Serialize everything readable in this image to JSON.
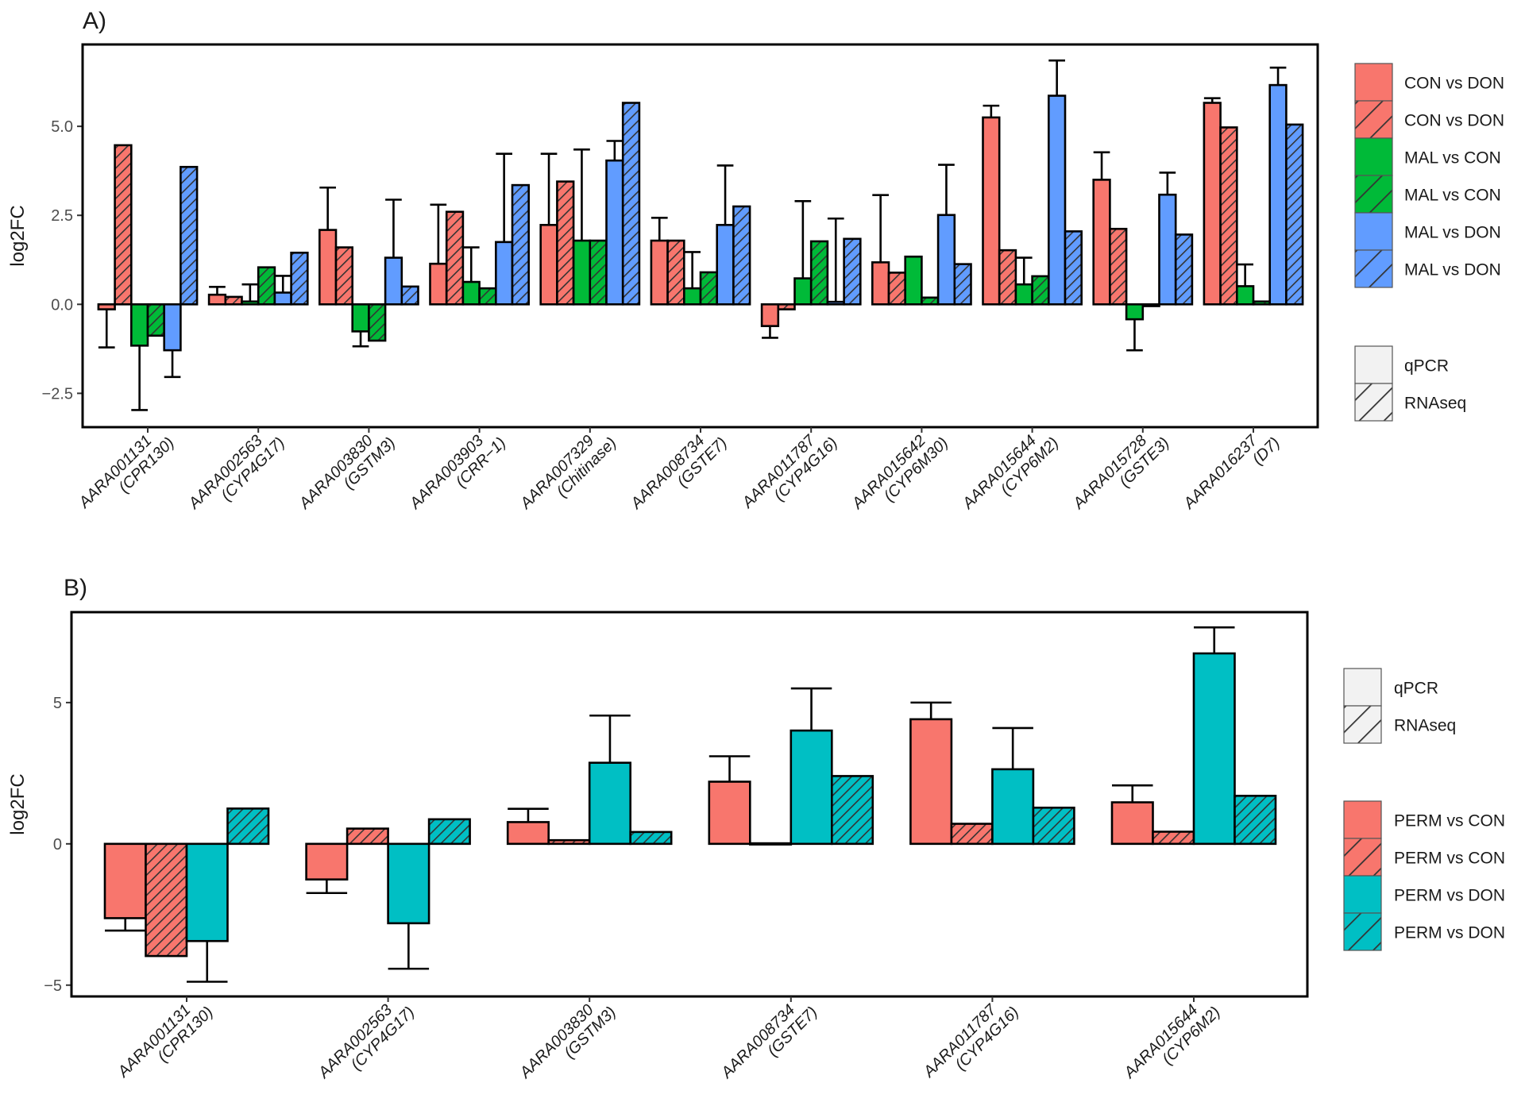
{
  "chart_data": [
    {
      "type": "bar",
      "panel_label": "A)",
      "ylabel": "log2FC",
      "xlabel": "",
      "ylim": [
        -3.45,
        7.3
      ],
      "yticks": [
        -2.5,
        0.0,
        2.5,
        5.0
      ],
      "ytick_labels": [
        "-2.5",
        "0.0",
        "2.5",
        "5.0"
      ],
      "grid": false,
      "legend_position": "right",
      "categories": [
        [
          "AARA001131",
          "(CPR130)"
        ],
        [
          "AARA002563",
          "(CYP4G17)"
        ],
        [
          "AARA003830",
          "(GSTM3)"
        ],
        [
          "AARA003903",
          "(CRR-1)"
        ],
        [
          "AARA007329",
          "(Chitinase)"
        ],
        [
          "AARA008734",
          "(GSTE7)"
        ],
        [
          "AARA011787",
          "(CYP4G16)"
        ],
        [
          "AARA015642",
          "(CYP6M30)"
        ],
        [
          "AARA015644",
          "(CYP6M2)"
        ],
        [
          "AARA015728",
          "(GSTE3)"
        ],
        [
          "AARA016237",
          "(D7)"
        ]
      ],
      "series": [
        {
          "name": "CON vs DON",
          "method": "qPCR",
          "color": "#F8766D",
          "hatched": false,
          "values": [
            -0.14,
            0.27,
            2.09,
            1.14,
            2.23,
            1.79,
            -0.61,
            1.18,
            5.25,
            3.5,
            5.66
          ],
          "error_ends": [
            -1.21,
            0.49,
            3.28,
            2.8,
            4.23,
            2.43,
            -0.94,
            3.07,
            5.58,
            4.27,
            5.79
          ]
        },
        {
          "name": "CON vs DON",
          "method": "RNAseq",
          "color": "#F8766D",
          "hatched": true,
          "values": [
            4.47,
            0.21,
            1.6,
            2.6,
            3.45,
            1.79,
            -0.14,
            0.89,
            1.52,
            2.12,
            4.97
          ],
          "error_ends": null
        },
        {
          "name": "MAL vs CON",
          "method": "qPCR",
          "color": "#00BA38",
          "hatched": false,
          "values": [
            -1.16,
            0.08,
            -0.76,
            0.63,
            1.79,
            0.45,
            0.73,
            1.34,
            0.56,
            -0.42,
            0.51
          ],
          "error_ends": [
            -2.97,
            0.56,
            -1.18,
            1.6,
            4.35,
            1.47,
            2.9,
            null,
            1.31,
            -1.29,
            1.12
          ]
        },
        {
          "name": "MAL vs CON",
          "method": "RNAseq",
          "color": "#00BA38",
          "hatched": true,
          "values": [
            -0.88,
            1.04,
            -1.02,
            0.45,
            1.79,
            0.9,
            1.77,
            0.19,
            0.79,
            -0.05,
            0.08
          ],
          "error_ends": null
        },
        {
          "name": "MAL vs DON",
          "method": "qPCR",
          "color": "#619CFF",
          "hatched": false,
          "values": [
            -1.29,
            0.33,
            1.31,
            1.75,
            4.04,
            2.23,
            0.07,
            2.51,
            5.86,
            3.08,
            6.16
          ],
          "error_ends": [
            -2.04,
            0.8,
            2.94,
            4.23,
            4.59,
            3.9,
            2.41,
            3.92,
            6.85,
            3.7,
            6.65
          ]
        },
        {
          "name": "MAL vs DON",
          "method": "RNAseq",
          "color": "#619CFF",
          "hatched": true,
          "values": [
            3.86,
            1.45,
            0.5,
            3.35,
            5.66,
            2.75,
            1.84,
            1.13,
            2.05,
            1.96,
            5.05
          ],
          "error_ends": null
        }
      ],
      "legend": {
        "comparisons": [
          {
            "label": "CON vs DON",
            "color": "#F8766D",
            "hatched": false
          },
          {
            "label": "CON vs DON",
            "color": "#F8766D",
            "hatched": true
          },
          {
            "label": "MAL vs CON",
            "color": "#00BA38",
            "hatched": false
          },
          {
            "label": "MAL vs CON",
            "color": "#00BA38",
            "hatched": true
          },
          {
            "label": "MAL vs DON",
            "color": "#619CFF",
            "hatched": false
          },
          {
            "label": "MAL vs DON",
            "color": "#619CFF",
            "hatched": true
          }
        ],
        "methods": [
          {
            "label": "qPCR",
            "hatched": false
          },
          {
            "label": "RNAseq",
            "hatched": true
          }
        ]
      }
    },
    {
      "type": "bar",
      "panel_label": "B)",
      "ylabel": "log2FC",
      "xlabel": "",
      "ylim": [
        -5.4,
        8.2
      ],
      "yticks": [
        -5,
        0,
        5
      ],
      "ytick_labels": [
        "-5",
        "0",
        "5"
      ],
      "grid": false,
      "legend_position": "right",
      "categories": [
        [
          "AARA001131",
          "(CPR130)"
        ],
        [
          "AARA002563",
          "(CYP4G17)"
        ],
        [
          "AARA003830",
          "(GSTM3)"
        ],
        [
          "AARA008734",
          "(GSTE7)"
        ],
        [
          "AARA011787",
          "(CYP4G16)"
        ],
        [
          "AARA015644",
          "(CYP6M2)"
        ]
      ],
      "series": [
        {
          "name": "PERM vs CON",
          "method": "qPCR",
          "color": "#F8766D",
          "hatched": false,
          "values": [
            -2.63,
            -1.26,
            0.77,
            2.2,
            4.41,
            1.47
          ],
          "error_ends": [
            -3.07,
            -1.74,
            1.24,
            3.1,
            5.0,
            2.07
          ]
        },
        {
          "name": "PERM vs CON",
          "method": "RNAseq",
          "color": "#F8766D",
          "hatched": true,
          "values": [
            -3.97,
            0.54,
            0.13,
            0.02,
            0.71,
            0.43
          ],
          "error_ends": null
        },
        {
          "name": "PERM vs DON",
          "method": "qPCR",
          "color": "#00BFC4",
          "hatched": false,
          "values": [
            -3.44,
            -2.81,
            2.87,
            4.01,
            2.64,
            6.74
          ],
          "error_ends": [
            -4.88,
            -4.42,
            4.54,
            5.5,
            4.1,
            7.66
          ]
        },
        {
          "name": "PERM vs DON",
          "method": "RNAseq",
          "color": "#00BFC4",
          "hatched": true,
          "values": [
            1.25,
            0.87,
            0.42,
            2.4,
            1.28,
            1.7
          ],
          "error_ends": null
        }
      ],
      "legend": {
        "methods": [
          {
            "label": "qPCR",
            "hatched": false
          },
          {
            "label": "RNAseq",
            "hatched": true
          }
        ],
        "comparisons": [
          {
            "label": "PERM vs CON",
            "color": "#F8766D",
            "hatched": false
          },
          {
            "label": "PERM vs CON",
            "color": "#F8766D",
            "hatched": true
          },
          {
            "label": "PERM vs DON",
            "color": "#00BFC4",
            "hatched": false
          },
          {
            "label": "PERM vs DON",
            "color": "#00BFC4",
            "hatched": true
          }
        ]
      }
    }
  ]
}
